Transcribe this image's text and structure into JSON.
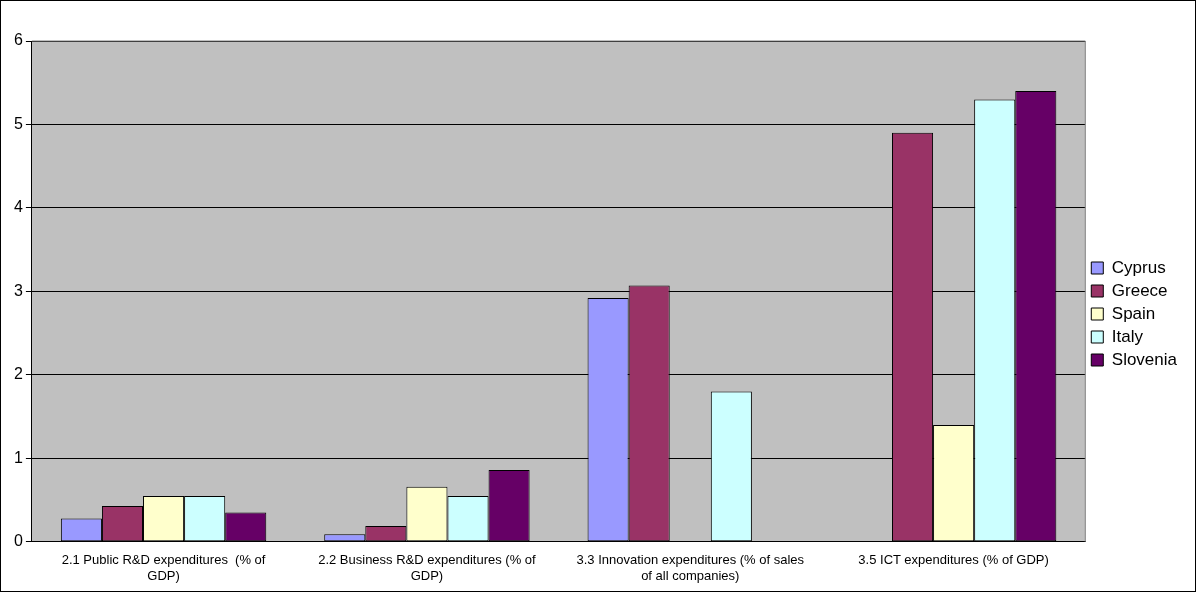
{
  "chart_data": {
    "type": "bar",
    "categories": [
      "2.1 Public R&D expenditures  (% of GDP)",
      "2.2 Business R&D expenditures (% of GDP)",
      "3.3 Innovation expenditures (% of sales of all companies)",
      "3.5 ICT expenditures (% of GDP)"
    ],
    "series": [
      {
        "name": "Cyprus",
        "color": "#9999ff",
        "values": [
          0.28,
          0.09,
          2.92,
          null
        ]
      },
      {
        "name": "Greece",
        "color": "#993366",
        "values": [
          0.43,
          0.19,
          3.07,
          4.9
        ]
      },
      {
        "name": "Spain",
        "color": "#ffffcc",
        "values": [
          0.55,
          0.66,
          null,
          1.4
        ]
      },
      {
        "name": "Italy",
        "color": "#ccffff",
        "values": [
          0.55,
          0.55,
          1.8,
          5.3
        ]
      },
      {
        "name": "Slovenia",
        "color": "#660066",
        "values": [
          0.35,
          0.86,
          null,
          5.4
        ]
      }
    ],
    "ylim": [
      0,
      6
    ],
    "yticks": [
      0,
      1,
      2,
      3,
      4,
      5,
      6
    ],
    "grid": "y",
    "legend": "right"
  }
}
